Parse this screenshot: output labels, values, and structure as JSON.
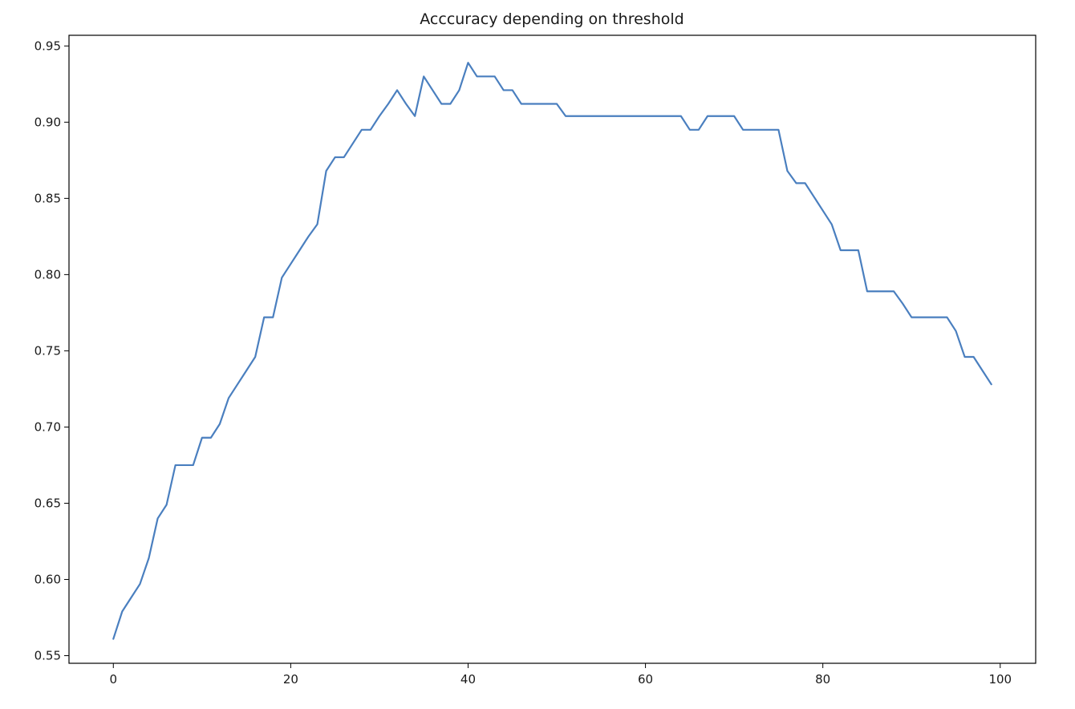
{
  "chart_data": {
    "type": "line",
    "title": "Acccuracy depending on threshold",
    "xlabel": "",
    "ylabel": "",
    "xlim": [
      -5,
      104
    ],
    "ylim": [
      0.545,
      0.957
    ],
    "xticks": [
      0,
      20,
      40,
      60,
      80,
      100
    ],
    "yticks": [
      0.55,
      0.6,
      0.65,
      0.7,
      0.75,
      0.8,
      0.85,
      0.9,
      0.95
    ],
    "xtick_labels": [
      "0",
      "20",
      "40",
      "60",
      "80",
      "100"
    ],
    "ytick_labels": [
      "0.55",
      "0.60",
      "0.65",
      "0.70",
      "0.75",
      "0.80",
      "0.85",
      "0.90",
      "0.95"
    ],
    "grid": false,
    "colors": {
      "line": "#4a7fbf",
      "axes": "#000000"
    },
    "series": [
      {
        "x": [
          0,
          1,
          2,
          3,
          4,
          5,
          6,
          7,
          8,
          9,
          10,
          11,
          12,
          13,
          14,
          15,
          16,
          17,
          18,
          19,
          20,
          21,
          22,
          23,
          24,
          25,
          26,
          27,
          28,
          29,
          30,
          31,
          32,
          33,
          34,
          35,
          36,
          37,
          38,
          39,
          40,
          41,
          42,
          43,
          44,
          45,
          46,
          47,
          48,
          49,
          50,
          51,
          52,
          53,
          54,
          55,
          56,
          57,
          58,
          59,
          60,
          61,
          62,
          63,
          64,
          65,
          66,
          67,
          68,
          69,
          70,
          71,
          72,
          73,
          74,
          75,
          76,
          77,
          78,
          79,
          80,
          81,
          82,
          83,
          84,
          85,
          86,
          87,
          88,
          89,
          90,
          91,
          92,
          93,
          94,
          95,
          96,
          97,
          98,
          99
        ],
        "values": [
          0.561,
          0.579,
          0.588,
          0.597,
          0.614,
          0.64,
          0.649,
          0.675,
          0.675,
          0.675,
          0.693,
          0.693,
          0.702,
          0.719,
          0.728,
          0.737,
          0.746,
          0.772,
          0.772,
          0.798,
          0.807,
          0.816,
          0.825,
          0.833,
          0.868,
          0.877,
          0.877,
          0.886,
          0.895,
          0.895,
          0.904,
          0.912,
          0.921,
          0.912,
          0.904,
          0.93,
          0.921,
          0.912,
          0.912,
          0.921,
          0.939,
          0.93,
          0.93,
          0.93,
          0.921,
          0.921,
          0.912,
          0.912,
          0.912,
          0.912,
          0.912,
          0.904,
          0.904,
          0.904,
          0.904,
          0.904,
          0.904,
          0.904,
          0.904,
          0.904,
          0.904,
          0.904,
          0.904,
          0.904,
          0.904,
          0.895,
          0.895,
          0.904,
          0.904,
          0.904,
          0.904,
          0.895,
          0.895,
          0.895,
          0.895,
          0.895,
          0.868,
          0.86,
          0.86,
          0.851,
          0.842,
          0.833,
          0.816,
          0.816,
          0.816,
          0.789,
          0.789,
          0.789,
          0.789,
          0.781,
          0.772,
          0.772,
          0.772,
          0.772,
          0.772,
          0.763,
          0.746,
          0.746,
          0.737,
          0.728
        ]
      }
    ]
  }
}
